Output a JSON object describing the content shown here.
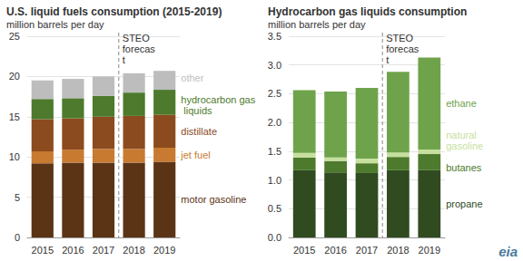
{
  "chart_data": [
    {
      "type": "bar",
      "stacked": true,
      "grid": true,
      "title": "U.S. liquid fuels consumption (2015-2019)",
      "subtitle": "million barrels per day",
      "categories": [
        "2015",
        "2016",
        "2017",
        "2018",
        "2019"
      ],
      "annotation": {
        "text": "STEO forecast",
        "forecast_start": "2018"
      },
      "series": [
        {
          "name": "motor gasoline",
          "color": "#5b3416",
          "values": [
            9.2,
            9.3,
            9.3,
            9.3,
            9.4
          ]
        },
        {
          "name": "jet fuel",
          "color": "#c77a30",
          "values": [
            1.5,
            1.6,
            1.7,
            1.7,
            1.75
          ]
        },
        {
          "name": "distillate",
          "color": "#8c4b1e",
          "values": [
            4.0,
            3.9,
            4.0,
            4.1,
            4.1
          ]
        },
        {
          "name": "hydrocarbon gas liquids",
          "color": "#4d7a2c",
          "values": [
            2.5,
            2.5,
            2.6,
            2.9,
            3.1
          ]
        },
        {
          "name": "other",
          "color": "#bdbdbd",
          "values": [
            2.3,
            2.4,
            2.4,
            2.4,
            2.35
          ]
        }
      ],
      "ylim": [
        0,
        25
      ],
      "yticks": [
        0,
        5,
        10,
        15,
        20,
        25
      ]
    },
    {
      "type": "bar",
      "stacked": true,
      "grid": true,
      "title": "Hydrocarbon gas liquids consumption",
      "subtitle": "million barrels per day",
      "categories": [
        "2015",
        "2016",
        "2017",
        "2018",
        "2019"
      ],
      "annotation": {
        "text": "STEO forecast",
        "forecast_start": "2018"
      },
      "series": [
        {
          "name": "propane",
          "color": "#2f4b1f",
          "values": [
            1.17,
            1.13,
            1.12,
            1.17,
            1.17
          ]
        },
        {
          "name": "butanes",
          "color": "#4d7a2c",
          "values": [
            0.22,
            0.2,
            0.17,
            0.23,
            0.28
          ]
        },
        {
          "name": "natural gasoline",
          "color": "#c6df9e",
          "values": [
            0.08,
            0.06,
            0.08,
            0.08,
            0.08
          ]
        },
        {
          "name": "ethane",
          "color": "#6fa34b",
          "values": [
            1.09,
            1.15,
            1.23,
            1.4,
            1.6
          ]
        }
      ],
      "ylim": [
        0,
        3.5
      ],
      "yticks": [
        {
          "value": 0,
          "label": "0.0"
        },
        {
          "value": 0.5,
          "label": "0.5"
        },
        {
          "value": 1,
          "label": "1.0"
        },
        {
          "value": 1.5,
          "label": "1.5"
        },
        {
          "value": 2,
          "label": "2.0"
        },
        {
          "value": 2.5,
          "label": "2.5"
        },
        {
          "value": 3,
          "label": "3.0"
        },
        {
          "value": 3.5,
          "label": "3.5"
        }
      ]
    }
  ],
  "logo": "eia"
}
